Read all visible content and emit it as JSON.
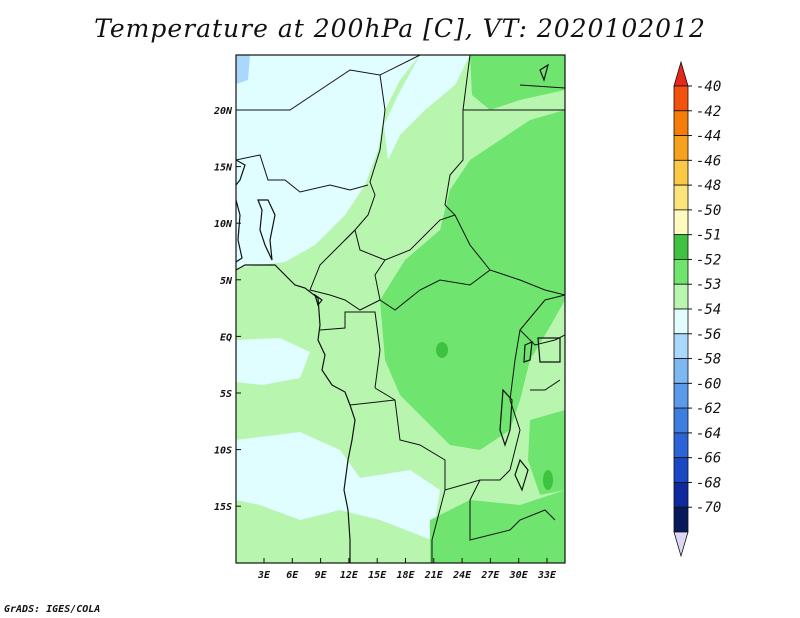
{
  "title": "Temperature at 200hPa [C], VT: 2020102012",
  "credit": "GrADS: IGES/COLA",
  "map": {
    "lat_labels": [
      "20N",
      "15N",
      "10N",
      "5N",
      "EQ",
      "5S",
      "10S",
      "15S"
    ],
    "lon_labels": [
      "3E",
      "6E",
      "9E",
      "12E",
      "15E",
      "18E",
      "21E",
      "24E",
      "27E",
      "30E",
      "33E"
    ]
  },
  "legend": {
    "labels": [
      "-40",
      "-42",
      "-44",
      "-46",
      "-48",
      "-50",
      "-51",
      "-52",
      "-53",
      "-54",
      "-56",
      "-58",
      "-60",
      "-62",
      "-64",
      "-66",
      "-68",
      "-70"
    ],
    "colors": [
      "#e8261a",
      "#f2520e",
      "#f47c0a",
      "#f6a21c",
      "#fbc844",
      "#fde47a",
      "#fffbbf",
      "#3fc23f",
      "#6fe46f",
      "#b8f6b0",
      "#e0fdff",
      "#a9d8fc",
      "#7eb8f2",
      "#5a9ae8",
      "#3d7ee0",
      "#2a64d6",
      "#1a48c4",
      "#0f2a9e",
      "#061a5c",
      "#ddd6f5"
    ]
  },
  "colors": {
    "level_minus54_to_minus53": "#b8f6b0",
    "level_minus53_to_minus52": "#6fe46f",
    "level_minus52_to_minus51": "#3fc23f",
    "level_minus56_to_minus54": "#e0fdff",
    "level_minus58_to_minus56": "#a9d8fc"
  }
}
